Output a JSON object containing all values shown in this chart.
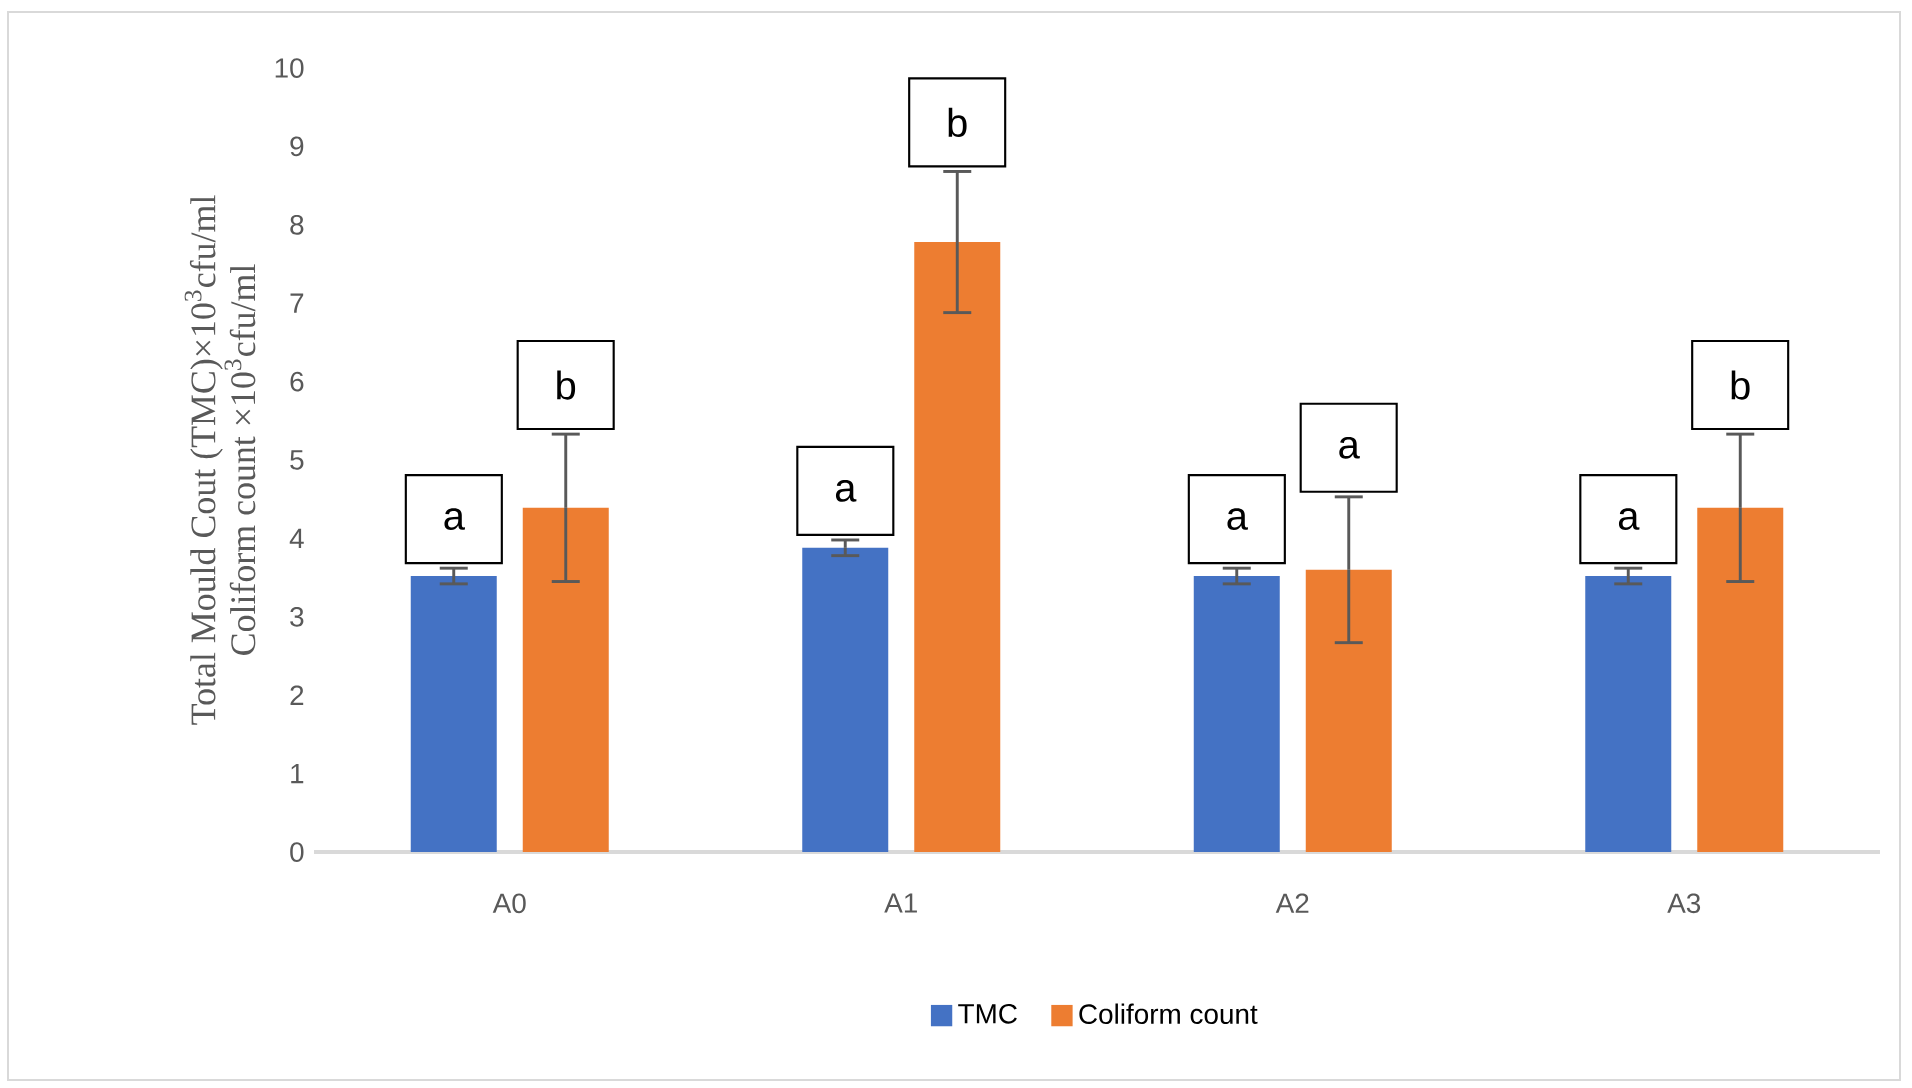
{
  "chart_data": {
    "type": "bar",
    "ylabel": [
      "Total Mould Cout (TMC)×10$^{3}$cfu/ml",
      "Coliform count ×10$^{3}$cfu/ml"
    ],
    "categories": [
      "A0",
      "A1",
      "A2",
      "A3"
    ],
    "series": [
      {
        "name": "TMC",
        "color": "#4472c4",
        "values": [
          3.52,
          3.88,
          3.52,
          3.52
        ],
        "errors": [
          0.1,
          0.1,
          0.1,
          0.1
        ]
      },
      {
        "name": "Coliform  count",
        "color": "#ed7d31",
        "values": [
          4.39,
          7.78,
          3.6,
          4.39
        ],
        "errors": [
          0.94,
          0.9,
          0.93,
          0.94
        ]
      }
    ],
    "annotations": [
      "a",
      "b",
      "a",
      "b",
      "a",
      "a",
      "a",
      "b"
    ],
    "ylim": [
      0,
      10
    ],
    "yticks": [
      0,
      1,
      2,
      3,
      4,
      5,
      6,
      7,
      8,
      9,
      10
    ],
    "grid": false,
    "legend": "bottom"
  }
}
